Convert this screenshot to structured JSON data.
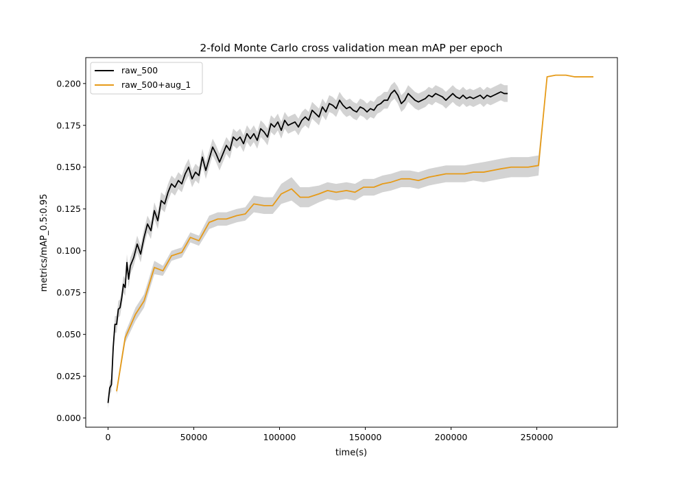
{
  "chart_data": {
    "type": "line",
    "title": "2-fold Monte Carlo cross validation mean mAP per epoch",
    "xlabel": "time(s)",
    "ylabel": "metrics/mAP_0.5:0.95",
    "xlim": [
      -13000,
      297000
    ],
    "ylim": [
      -0.0055,
      0.2155
    ],
    "xticks": [
      0,
      50000,
      100000,
      150000,
      200000,
      250000
    ],
    "xtick_labels": [
      "0",
      "50000",
      "100000",
      "150000",
      "200000",
      "250000"
    ],
    "yticks": [
      0.0,
      0.025,
      0.05,
      0.075,
      0.1,
      0.125,
      0.15,
      0.175,
      0.2
    ],
    "ytick_labels": [
      "0.000",
      "0.025",
      "0.050",
      "0.075",
      "0.100",
      "0.125",
      "0.150",
      "0.175",
      "0.200"
    ],
    "grid": false,
    "legend_position": "top-left",
    "band_color": "#d3d3d3",
    "series": [
      {
        "name": "raw_500",
        "color": "#000000",
        "x": [
          0,
          1000,
          2000,
          3000,
          4000,
          5000,
          6000,
          7000,
          8000,
          9000,
          10000,
          11000,
          12000,
          13000,
          15000,
          17000,
          19000,
          21000,
          23000,
          25000,
          27000,
          29000,
          31000,
          33000,
          35000,
          37000,
          39000,
          41000,
          43000,
          45000,
          47000,
          49000,
          51000,
          53000,
          55000,
          57000,
          59000,
          61000,
          63000,
          65000,
          67000,
          69000,
          71000,
          73000,
          75000,
          77000,
          79000,
          81000,
          83000,
          85000,
          87000,
          89000,
          91000,
          93000,
          95000,
          97000,
          99000,
          101000,
          103000,
          105000,
          107000,
          109000,
          111000,
          113000,
          115000,
          117000,
          119000,
          121000,
          123000,
          125000,
          127000,
          129000,
          131000,
          133000,
          135000,
          137000,
          139000,
          141000,
          143000,
          145000,
          147000,
          149000,
          151000,
          153000,
          155000,
          157000,
          159000,
          161000,
          163000,
          165000,
          167000,
          169000,
          171000,
          173000,
          175000,
          177000,
          179000,
          181000,
          183000,
          185000,
          187000,
          189000,
          191000,
          193000,
          195000,
          197000,
          199000,
          201000,
          203000,
          205000,
          207000,
          209000,
          211000,
          213000,
          215000,
          217000,
          219000,
          221000,
          223000,
          225000,
          227000,
          229000,
          231000,
          233000
        ],
        "y": [
          0.009,
          0.018,
          0.02,
          0.042,
          0.056,
          0.056,
          0.065,
          0.066,
          0.072,
          0.08,
          0.078,
          0.093,
          0.083,
          0.091,
          0.096,
          0.104,
          0.098,
          0.108,
          0.116,
          0.112,
          0.124,
          0.118,
          0.13,
          0.128,
          0.135,
          0.14,
          0.138,
          0.142,
          0.14,
          0.146,
          0.15,
          0.143,
          0.147,
          0.145,
          0.156,
          0.148,
          0.155,
          0.162,
          0.158,
          0.153,
          0.158,
          0.163,
          0.16,
          0.168,
          0.166,
          0.168,
          0.164,
          0.17,
          0.167,
          0.17,
          0.166,
          0.173,
          0.171,
          0.168,
          0.176,
          0.174,
          0.177,
          0.172,
          0.178,
          0.175,
          0.176,
          0.177,
          0.174,
          0.178,
          0.18,
          0.178,
          0.184,
          0.182,
          0.18,
          0.186,
          0.183,
          0.188,
          0.187,
          0.185,
          0.19,
          0.187,
          0.185,
          0.186,
          0.184,
          0.183,
          0.186,
          0.185,
          0.183,
          0.185,
          0.184,
          0.187,
          0.188,
          0.19,
          0.19,
          0.194,
          0.196,
          0.193,
          0.188,
          0.19,
          0.194,
          0.192,
          0.19,
          0.189,
          0.19,
          0.191,
          0.193,
          0.192,
          0.194,
          0.193,
          0.192,
          0.19,
          0.192,
          0.194,
          0.192,
          0.191,
          0.193,
          0.191,
          0.192,
          0.191,
          0.192,
          0.193,
          0.191,
          0.193,
          0.192,
          0.193,
          0.194,
          0.195,
          0.194,
          0.194
        ],
        "band": [
          0.0035,
          0.004,
          0.004,
          0.005,
          0.005,
          0.005,
          0.005,
          0.005,
          0.005,
          0.005,
          0.005,
          0.005,
          0.005,
          0.005,
          0.005,
          0.005,
          0.005,
          0.005,
          0.005,
          0.005,
          0.005,
          0.005,
          0.005,
          0.005,
          0.005,
          0.005,
          0.005,
          0.005,
          0.005,
          0.005,
          0.005,
          0.005,
          0.005,
          0.005,
          0.005,
          0.005,
          0.005,
          0.005,
          0.005,
          0.005,
          0.005,
          0.005,
          0.005,
          0.005,
          0.005,
          0.005,
          0.005,
          0.005,
          0.005,
          0.005,
          0.005,
          0.005,
          0.005,
          0.005,
          0.005,
          0.005,
          0.005,
          0.005,
          0.005,
          0.005,
          0.005,
          0.005,
          0.005,
          0.005,
          0.005,
          0.005,
          0.005,
          0.005,
          0.005,
          0.005,
          0.005,
          0.005,
          0.005,
          0.005,
          0.005,
          0.005,
          0.005,
          0.005,
          0.005,
          0.005,
          0.005,
          0.005,
          0.005,
          0.005,
          0.005,
          0.005,
          0.005,
          0.005,
          0.005,
          0.005,
          0.005,
          0.005,
          0.005,
          0.005,
          0.005,
          0.005,
          0.005,
          0.005,
          0.005,
          0.005,
          0.005,
          0.005,
          0.005,
          0.005,
          0.005,
          0.005,
          0.005,
          0.005,
          0.005,
          0.005,
          0.005,
          0.005,
          0.005,
          0.005,
          0.005,
          0.005,
          0.005,
          0.005,
          0.005,
          0.005,
          0.005,
          0.005,
          0.005,
          0.005
        ]
      },
      {
        "name": "raw_500+aug_1",
        "color": "#e69a17",
        "x": [
          5000,
          10000,
          16000,
          21000,
          27000,
          32000,
          37000,
          43000,
          48000,
          53000,
          59000,
          64000,
          69000,
          75000,
          80000,
          85000,
          91000,
          96000,
          101000,
          107000,
          112000,
          117000,
          123000,
          128000,
          133000,
          139000,
          144000,
          149000,
          155000,
          160000,
          165000,
          171000,
          176000,
          181000,
          187000,
          192000,
          197000,
          203000,
          208000,
          213000,
          219000,
          224000,
          229000,
          235000,
          240000,
          245000,
          251000,
          256000,
          261000,
          267000,
          272000,
          277000,
          283000
        ],
        "y": [
          0.016,
          0.048,
          0.062,
          0.07,
          0.09,
          0.088,
          0.097,
          0.099,
          0.108,
          0.106,
          0.117,
          0.119,
          0.119,
          0.121,
          0.122,
          0.128,
          0.127,
          0.127,
          0.134,
          0.137,
          0.132,
          0.132,
          0.134,
          0.136,
          0.135,
          0.136,
          0.135,
          0.138,
          0.138,
          0.14,
          0.141,
          0.143,
          0.143,
          0.142,
          0.144,
          0.145,
          0.146,
          0.146,
          0.146,
          0.147,
          0.147,
          0.148,
          0.149,
          0.15,
          0.15,
          0.15,
          0.151,
          0.204,
          0.205,
          0.205,
          0.204,
          0.204,
          0.204
        ],
        "band": [
          0.002,
          0.003,
          0.004,
          0.004,
          0.004,
          0.003,
          0.003,
          0.003,
          0.003,
          0.003,
          0.004,
          0.004,
          0.004,
          0.004,
          0.004,
          0.005,
          0.005,
          0.005,
          0.006,
          0.007,
          0.006,
          0.006,
          0.005,
          0.005,
          0.005,
          0.005,
          0.005,
          0.005,
          0.005,
          0.005,
          0.005,
          0.005,
          0.005,
          0.005,
          0.005,
          0.005,
          0.005,
          0.005,
          0.005,
          0.005,
          0.006,
          0.006,
          0.006,
          0.006,
          0.006,
          0.006,
          0.006,
          0,
          0,
          0,
          0,
          0,
          0
        ]
      }
    ]
  }
}
